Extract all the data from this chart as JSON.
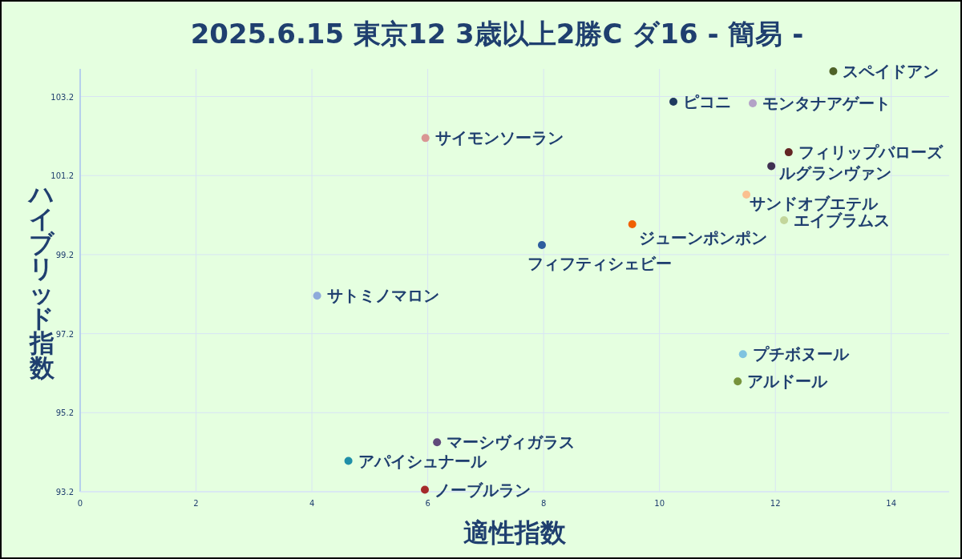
{
  "chart_data": {
    "type": "scatter",
    "title": "2025.6.15 東京12 3歳以上2勝C ダ16 - 簡易 -",
    "xlabel": "適性指数",
    "ylabel": "ハイブリッド指数",
    "xlim": [
      0,
      15
    ],
    "xticks": [
      0,
      2,
      4,
      6,
      8,
      10,
      12,
      14
    ],
    "ylim": [
      93.2,
      103.9
    ],
    "yticks": [
      93.2,
      95.2,
      97.2,
      99.2,
      101.2,
      103.2
    ],
    "grid": true,
    "marker": "circle",
    "series": [
      {
        "name": "スペイドアン",
        "color": "#4f6228",
        "x": [
          13.0
        ],
        "values": [
          103.84
        ]
      },
      {
        "name": "ピコニ",
        "color": "#1f3a5f",
        "x": [
          10.24
        ],
        "values": [
          103.07
        ]
      },
      {
        "name": "モンタナアゲート",
        "color": "#b3a2c7",
        "x": [
          11.61
        ],
        "values": [
          103.03
        ]
      },
      {
        "name": "サイモンソーラン",
        "color": "#d99694",
        "x": [
          5.96
        ],
        "values": [
          102.15
        ]
      },
      {
        "name": "フィリップバローズ",
        "color": "#632523",
        "x": [
          12.23
        ],
        "values": [
          101.79
        ]
      },
      {
        "name": "ルグランヴァン",
        "color": "#403152",
        "x": [
          11.93
        ],
        "values": [
          101.44
        ]
      },
      {
        "name": "サンドオブエテル",
        "color": "#fac090",
        "x": [
          11.5
        ],
        "values": [
          100.72
        ]
      },
      {
        "name": "エイブラムス",
        "color": "#c3d69b",
        "x": [
          12.15
        ],
        "values": [
          100.07
        ]
      },
      {
        "name": "ジューンポンポン",
        "color": "#f06000",
        "x": [
          9.53
        ],
        "values": [
          99.97
        ]
      },
      {
        "name": "フィフティシェビー",
        "color": "#2e5e9e",
        "x": [
          7.97
        ],
        "values": [
          99.44
        ]
      },
      {
        "name": "サトミノマロン",
        "color": "#8eaadb",
        "x": [
          4.09
        ],
        "values": [
          98.16
        ]
      },
      {
        "name": "プチボヌール",
        "color": "#7fc3e0",
        "x": [
          11.44
        ],
        "values": [
          96.68
        ]
      },
      {
        "name": "アルドール",
        "color": "#77933c",
        "x": [
          11.35
        ],
        "values": [
          95.99
        ]
      },
      {
        "name": "マーシヴィガラス",
        "color": "#604a7b",
        "x": [
          6.16
        ],
        "values": [
          94.45
        ]
      },
      {
        "name": "アパイシュナール",
        "color": "#1f8fa8",
        "x": [
          4.63
        ],
        "values": [
          93.98
        ]
      },
      {
        "name": "ノーブルラン",
        "color": "#a52a2a",
        "x": [
          5.95
        ],
        "values": [
          93.25
        ]
      }
    ]
  }
}
